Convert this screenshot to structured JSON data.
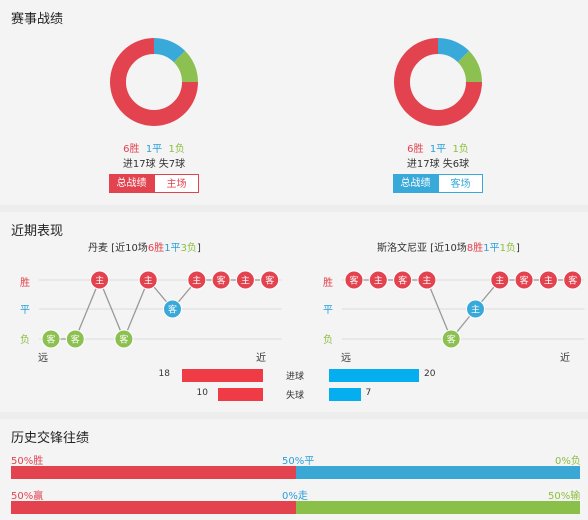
{
  "sections": {
    "record_title": "赛事战绩",
    "recent_title": "近期表现",
    "history_title": "历史交锋往绩"
  },
  "colors": {
    "win": "#e2434f",
    "draw": "#39a9d9",
    "loss": "#8cc152",
    "hist_draw": "#3aa7d5",
    "hist_loss": "#8ac049"
  },
  "record": {
    "left": {
      "wins_label": "6胜",
      "draws_label": "1平",
      "losses_label": "1负",
      "goals_line": "进17球  失7球",
      "donut": {
        "win": 6,
        "draw": 1,
        "loss": 1
      },
      "btn_all": "总战绩",
      "btn_venue": "主场"
    },
    "right": {
      "wins_label": "6胜",
      "draws_label": "1平",
      "losses_label": "1负",
      "goals_line": "进17球  失6球",
      "donut": {
        "win": 6,
        "draw": 1,
        "loss": 1
      },
      "btn_all": "总战绩",
      "btn_venue": "客场"
    }
  },
  "recent": {
    "left": {
      "team": "丹麦",
      "header_pre": " [近10场",
      "wins": "6胜",
      "draws": "1平",
      "losses": "3负",
      "header_post": "]",
      "results": [
        {
          "r": "L",
          "tag": "客"
        },
        {
          "r": "L",
          "tag": "客"
        },
        {
          "r": "W",
          "tag": "主"
        },
        {
          "r": "L",
          "tag": "客"
        },
        {
          "r": "W",
          "tag": "主"
        },
        {
          "r": "D",
          "tag": "客"
        },
        {
          "r": "W",
          "tag": "主"
        },
        {
          "r": "W",
          "tag": "客"
        },
        {
          "r": "W",
          "tag": "主"
        },
        {
          "r": "W",
          "tag": "客"
        }
      ]
    },
    "right": {
      "team": "斯洛文尼亚",
      "header_pre": " [近10场",
      "wins": "8胜",
      "draws": "1平",
      "losses": "1负",
      "header_post": "]",
      "results": [
        {
          "r": "W",
          "tag": "客"
        },
        {
          "r": "W",
          "tag": "主"
        },
        {
          "r": "W",
          "tag": "客"
        },
        {
          "r": "W",
          "tag": "主"
        },
        {
          "r": "L",
          "tag": "客"
        },
        {
          "r": "D",
          "tag": "主"
        },
        {
          "r": "W",
          "tag": "主"
        },
        {
          "r": "W",
          "tag": "客"
        },
        {
          "r": "W",
          "tag": "主"
        },
        {
          "r": "W",
          "tag": "客"
        }
      ]
    },
    "axis": {
      "win": "胜",
      "draw": "平",
      "loss": "负",
      "far": "远",
      "near": "近"
    },
    "goals": {
      "label": "进球",
      "left": 18,
      "right": 20
    },
    "conceded": {
      "label": "失球",
      "left": 10,
      "right": 7
    }
  },
  "history": {
    "row1": {
      "left_label": "50%胜",
      "mid_label": "50%平",
      "right_label": "0%负",
      "a": 50,
      "b": 50,
      "c": 0
    },
    "row2": {
      "left_label": "50%赢",
      "mid_label": "0%走",
      "right_label": "50%输",
      "a": 50,
      "b": 0,
      "c": 50
    }
  }
}
